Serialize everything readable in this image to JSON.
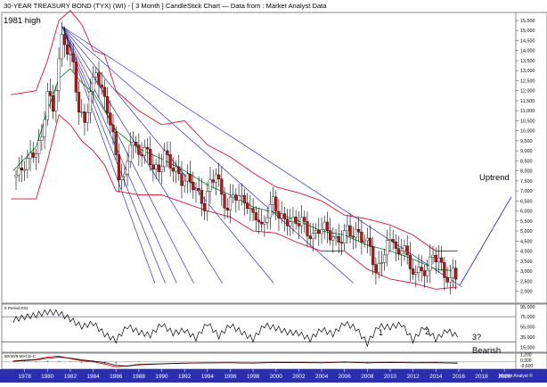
{
  "header": {
    "title": "30-YEAR TREASURY BOND (TYX) (WI) - [ 3 Month ] CandleStick Chart — Data from : Market Analyst Data"
  },
  "annotations": {
    "high_label": "1981 high",
    "uptrend_label": "Uptrend",
    "rsi_marks": [
      "1",
      "2",
      "3?"
    ],
    "bearish_label": "Bearish"
  },
  "colors": {
    "up_candle": "#ffffff",
    "down_candle": "#cc1111",
    "bollinger": "#dd1133",
    "moving_average": "#118833",
    "fan_lines": "#3333aa",
    "rsi_line": "#000000",
    "macd_line": "#cc0000",
    "signal_line": "#000000",
    "axis_strip": "#2a2fb0"
  },
  "chart_data": [
    {
      "type": "candlestick",
      "title": "30-YEAR TREASURY BOND (TYX) (WI) - [ 3 Month ] CandleStick Chart — Data from : Market Analyst Data",
      "xlabel": "",
      "ylabel": "",
      "xlim": [
        1976,
        2021
      ],
      "ylim": [
        1.4,
        15.9
      ],
      "y_ticks": [
        "15,500",
        "15,000",
        "14,500",
        "14,000",
        "13,500",
        "13,000",
        "12,500",
        "12,000",
        "11,500",
        "11,000",
        "10,500",
        "10,000",
        "9,500",
        "9,000",
        "8,500",
        "8,000",
        "7,500",
        "7,000",
        "6,500",
        "6,000",
        "5,500",
        "5,000",
        "4,500",
        "4,000",
        "3,500",
        "3,000",
        "2,500",
        "2,000"
      ],
      "x_ticks": [
        "1978",
        "1980",
        "1982",
        "1984",
        "1986",
        "1988",
        "1990",
        "1992",
        "1994",
        "1996",
        "1998",
        "2000",
        "2002",
        "2004",
        "2006",
        "2008",
        "2010",
        "2012",
        "2014",
        "2016",
        "2018",
        "2020"
      ],
      "high_1981": 15.2,
      "close_path": [
        [
          1977.0,
          7.7
        ],
        [
          1977.5,
          7.9
        ],
        [
          1978.0,
          8.3
        ],
        [
          1978.5,
          8.7
        ],
        [
          1979.0,
          9.0
        ],
        [
          1979.5,
          9.6
        ],
        [
          1980.0,
          12.0
        ],
        [
          1980.5,
          11.0
        ],
        [
          1981.0,
          13.5
        ],
        [
          1981.3,
          14.8
        ],
        [
          1981.75,
          14.0
        ],
        [
          1982.25,
          13.3
        ],
        [
          1982.75,
          11.0
        ],
        [
          1983.25,
          10.4
        ],
        [
          1983.75,
          11.9
        ],
        [
          1984.25,
          13.0
        ],
        [
          1984.75,
          12.0
        ],
        [
          1985.25,
          11.1
        ],
        [
          1985.75,
          9.7
        ],
        [
          1986.25,
          7.8
        ],
        [
          1986.75,
          7.6
        ],
        [
          1987.25,
          9.5
        ],
        [
          1987.75,
          9.1
        ],
        [
          1988.25,
          8.9
        ],
        [
          1988.75,
          9.0
        ],
        [
          1989.25,
          8.1
        ],
        [
          1989.75,
          8.0
        ],
        [
          1990.25,
          8.9
        ],
        [
          1990.75,
          8.3
        ],
        [
          1991.25,
          8.0
        ],
        [
          1991.75,
          7.5
        ],
        [
          1992.25,
          7.6
        ],
        [
          1992.75,
          7.3
        ],
        [
          1993.25,
          6.8
        ],
        [
          1993.75,
          6.2
        ],
        [
          1994.25,
          7.4
        ],
        [
          1994.75,
          7.9
        ],
        [
          1995.25,
          6.8
        ],
        [
          1995.75,
          6.0
        ],
        [
          1996.25,
          6.9
        ],
        [
          1996.75,
          6.6
        ],
        [
          1997.25,
          6.6
        ],
        [
          1997.75,
          5.9
        ],
        [
          1998.25,
          5.8
        ],
        [
          1998.75,
          5.1
        ],
        [
          1999.25,
          5.9
        ],
        [
          1999.75,
          6.5
        ],
        [
          2000.25,
          5.8
        ],
        [
          2000.75,
          5.5
        ],
        [
          2001.25,
          5.5
        ],
        [
          2001.75,
          5.4
        ],
        [
          2002.25,
          5.6
        ],
        [
          2002.75,
          4.9
        ],
        [
          2003.25,
          4.7
        ],
        [
          2003.75,
          5.1
        ],
        [
          2004.25,
          5.2
        ],
        [
          2004.75,
          4.8
        ],
        [
          2005.25,
          4.5
        ],
        [
          2005.75,
          4.6
        ],
        [
          2006.25,
          5.1
        ],
        [
          2006.75,
          4.8
        ],
        [
          2007.25,
          4.9
        ],
        [
          2007.75,
          4.5
        ],
        [
          2008.25,
          4.3
        ],
        [
          2008.75,
          2.8
        ],
        [
          2009.25,
          3.6
        ],
        [
          2009.75,
          4.3
        ],
        [
          2010.25,
          4.7
        ],
        [
          2010.75,
          3.6
        ],
        [
          2011.25,
          4.5
        ],
        [
          2011.75,
          2.9
        ],
        [
          2012.25,
          3.1
        ],
        [
          2012.75,
          2.9
        ],
        [
          2013.25,
          3.1
        ],
        [
          2013.75,
          3.8
        ],
        [
          2014.25,
          3.6
        ],
        [
          2014.75,
          2.8
        ],
        [
          2015.25,
          2.5
        ],
        [
          2015.5,
          3.0
        ],
        [
          2015.9,
          2.7
        ]
      ],
      "upper_band": [
        [
          1976.8,
          11.8
        ],
        [
          1979,
          12.0
        ],
        [
          1980,
          13.5
        ],
        [
          1981,
          15.5
        ],
        [
          1982,
          16.0
        ],
        [
          1983,
          15.3
        ],
        [
          1984,
          14.0
        ],
        [
          1985,
          13.8
        ],
        [
          1986,
          12.0
        ],
        [
          1988,
          11.0
        ],
        [
          1990,
          10.3
        ],
        [
          1992,
          10.5
        ],
        [
          1994,
          9.3
        ],
        [
          1996,
          8.7
        ],
        [
          1998,
          7.9
        ],
        [
          2000,
          7.2
        ],
        [
          2002,
          6.9
        ],
        [
          2004,
          6.5
        ],
        [
          2006,
          5.8
        ],
        [
          2008,
          5.6
        ],
        [
          2010,
          5.3
        ],
        [
          2012,
          4.8
        ],
        [
          2014,
          4.0
        ],
        [
          2015.9,
          4.0
        ]
      ],
      "lower_band": [
        [
          1976.8,
          6.6
        ],
        [
          1979,
          6.6
        ],
        [
          1980,
          8.5
        ],
        [
          1981,
          10.8
        ],
        [
          1982,
          10.3
        ],
        [
          1983,
          9.5
        ],
        [
          1984,
          9.0
        ],
        [
          1985,
          8.3
        ],
        [
          1986,
          7.0
        ],
        [
          1988,
          6.8
        ],
        [
          1990,
          6.8
        ],
        [
          1992,
          6.4
        ],
        [
          1994,
          6.0
        ],
        [
          1996,
          5.7
        ],
        [
          1998,
          5.0
        ],
        [
          2000,
          4.9
        ],
        [
          2002,
          4.4
        ],
        [
          2004,
          4.0
        ],
        [
          2006,
          4.0
        ],
        [
          2008,
          3.1
        ],
        [
          2010,
          2.6
        ],
        [
          2012,
          2.4
        ],
        [
          2014,
          2.1
        ],
        [
          2015.9,
          2.2
        ]
      ],
      "moving_average": [
        [
          1977,
          8.0
        ],
        [
          1979,
          9.2
        ],
        [
          1980,
          11.0
        ],
        [
          1981,
          12.6
        ],
        [
          1982,
          13.1
        ],
        [
          1983,
          12.4
        ],
        [
          1984,
          11.9
        ],
        [
          1985,
          11.0
        ],
        [
          1986,
          10.0
        ],
        [
          1988,
          9.1
        ],
        [
          1990,
          8.6
        ],
        [
          1992,
          8.0
        ],
        [
          1994,
          7.3
        ],
        [
          1996,
          6.8
        ],
        [
          1998,
          6.2
        ],
        [
          2000,
          5.9
        ],
        [
          2002,
          5.5
        ],
        [
          2004,
          5.0
        ],
        [
          2006,
          4.8
        ],
        [
          2008,
          4.3
        ],
        [
          2010,
          4.0
        ],
        [
          2012,
          3.6
        ],
        [
          2014,
          3.1
        ],
        [
          2015.9,
          3.0
        ]
      ],
      "fan_origin": [
        1981.3,
        15.2
      ],
      "fan_ends": [
        [
          2016.3,
          2.2
        ],
        [
          2006.8,
          2.4
        ],
        [
          1999.8,
          2.4
        ],
        [
          1995.3,
          2.4
        ],
        [
          1992.8,
          2.4
        ],
        [
          1991.3,
          2.4
        ],
        [
          1990.3,
          2.4
        ],
        [
          1989.4,
          2.4
        ]
      ],
      "uptrend_line": [
        [
          2016.1,
          2.3
        ],
        [
          2020.6,
          6.7
        ]
      ]
    },
    {
      "type": "line",
      "title": "6 Period RSI",
      "xlim": [
        1976,
        2021
      ],
      "ylim": [
        5,
        100
      ],
      "y_ticks": [
        "95,000",
        "75,000",
        "55,000",
        "35,000",
        "15,000"
      ],
      "reference_lines": [
        75,
        25
      ],
      "series": [
        {
          "name": "6 Period RSI",
          "points": [
            [
              1977,
              68
            ],
            [
              1978,
              74
            ],
            [
              1979,
              78
            ],
            [
              1980,
              84
            ],
            [
              1981,
              82
            ],
            [
              1982,
              70
            ],
            [
              1983,
              55
            ],
            [
              1984,
              62
            ],
            [
              1985,
              40
            ],
            [
              1986,
              28
            ],
            [
              1987,
              56
            ],
            [
              1988,
              44
            ],
            [
              1989,
              38
            ],
            [
              1990,
              60
            ],
            [
              1991,
              42
            ],
            [
              1992,
              48
            ],
            [
              1993,
              32
            ],
            [
              1994,
              62
            ],
            [
              1995,
              36
            ],
            [
              1996,
              58
            ],
            [
              1997,
              44
            ],
            [
              1998,
              30
            ],
            [
              1999,
              58
            ],
            [
              2000,
              52
            ],
            [
              2001,
              44
            ],
            [
              2002,
              42
            ],
            [
              2003,
              30
            ],
            [
              2004,
              50
            ],
            [
              2005,
              40
            ],
            [
              2006,
              62
            ],
            [
              2007,
              52
            ],
            [
              2008,
              22
            ],
            [
              2009,
              56
            ],
            [
              2010,
              54
            ],
            [
              2011,
              60
            ],
            [
              2012,
              28
            ],
            [
              2013,
              55
            ],
            [
              2014,
              30
            ],
            [
              2015,
              48
            ],
            [
              2015.9,
              35
            ]
          ]
        }
      ]
    },
    {
      "type": "line",
      "title": "50/30/9 MACD-C",
      "xlim": [
        1976,
        2021
      ],
      "ylim": [
        -1.2,
        1.45
      ],
      "y_ticks": [
        "1,200",
        "0,300",
        "-0,600"
      ],
      "series": [
        {
          "name": "MACD",
          "points": [
            [
              1977,
              0.15
            ],
            [
              1978,
              0.3
            ],
            [
              1979,
              0.4
            ],
            [
              1980,
              0.8
            ],
            [
              1981,
              0.95
            ],
            [
              1982,
              0.55
            ],
            [
              1983,
              0.2
            ],
            [
              1984,
              0.05
            ],
            [
              1985,
              -0.35
            ],
            [
              1986,
              -0.8
            ],
            [
              1987,
              -0.65
            ],
            [
              1988,
              -0.4
            ],
            [
              1990,
              -0.3
            ],
            [
              1992,
              -0.2
            ],
            [
              1994,
              -0.15
            ],
            [
              1996,
              -0.12
            ],
            [
              1998,
              -0.2
            ],
            [
              2000,
              -0.05
            ],
            [
              2002,
              -0.1
            ],
            [
              2004,
              -0.15
            ],
            [
              2006,
              0.0
            ],
            [
              2008,
              -0.18
            ],
            [
              2010,
              -0.05
            ],
            [
              2012,
              -0.15
            ],
            [
              2014,
              -0.12
            ],
            [
              2015.9,
              -0.22
            ]
          ]
        },
        {
          "name": "Signal",
          "points": [
            [
              1977,
              0.1
            ],
            [
              1978,
              0.22
            ],
            [
              1979,
              0.32
            ],
            [
              1980,
              0.6
            ],
            [
              1981,
              0.78
            ],
            [
              1982,
              0.62
            ],
            [
              1983,
              0.35
            ],
            [
              1984,
              0.15
            ],
            [
              1985,
              -0.1
            ],
            [
              1986,
              -0.55
            ],
            [
              1987,
              -0.7
            ],
            [
              1988,
              -0.5
            ],
            [
              1990,
              -0.32
            ],
            [
              1992,
              -0.22
            ],
            [
              1994,
              -0.16
            ],
            [
              1996,
              -0.14
            ],
            [
              1998,
              -0.18
            ],
            [
              2000,
              -0.08
            ],
            [
              2002,
              -0.1
            ],
            [
              2004,
              -0.13
            ],
            [
              2006,
              -0.03
            ],
            [
              2008,
              -0.12
            ],
            [
              2010,
              -0.08
            ],
            [
              2012,
              -0.12
            ],
            [
              2014,
              -0.11
            ],
            [
              2015.9,
              -0.18
            ]
          ]
        }
      ]
    }
  ],
  "footer": {
    "watermark": "Market Analyst ©"
  }
}
